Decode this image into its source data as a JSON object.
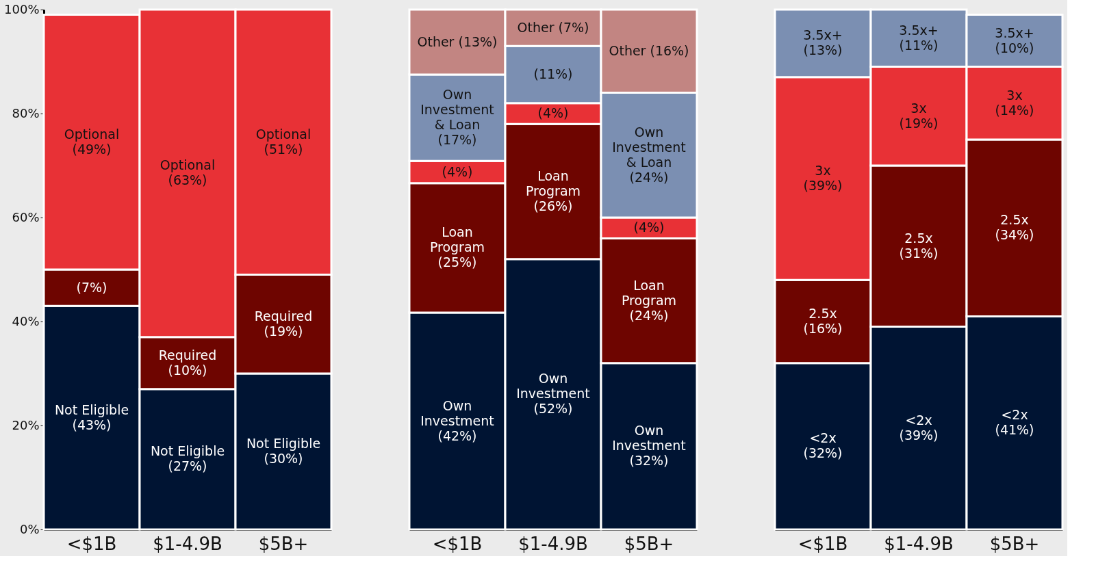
{
  "chart_data": [
    {
      "type": "bar",
      "stacked": true,
      "categories": [
        "<$1B",
        "$1-4.9B",
        "$5B+"
      ],
      "ylim": [
        0,
        100
      ],
      "yticks": [
        {
          "value": 0,
          "label": "0%"
        },
        {
          "value": 20,
          "label": "20%"
        },
        {
          "value": 40,
          "label": "40%"
        },
        {
          "value": 60,
          "label": "60%"
        },
        {
          "value": 80,
          "label": "80%"
        },
        {
          "value": 100,
          "label": "100%"
        }
      ],
      "series": [
        {
          "color": "#001433",
          "values": [
            43,
            27,
            30
          ],
          "value_labels": [
            "Not Eligible\n(43%)",
            "Not Eligible\n(27%)",
            "Not Eligible\n(30%)"
          ]
        },
        {
          "color": "#6e0500",
          "values": [
            7,
            10,
            19
          ],
          "value_labels": [
            "(7%)",
            "Required\n(10%)",
            "Required\n(19%)"
          ]
        },
        {
          "color": "#e83136",
          "values": [
            49,
            63,
            51
          ],
          "value_labels": [
            "Optional\n(49%)",
            "Optional\n(63%)",
            "Optional\n(51%)"
          ]
        }
      ]
    },
    {
      "type": "bar",
      "stacked": true,
      "categories": [
        "<$1B",
        "$1-4.9B",
        "$5B+"
      ],
      "ylim": [
        0,
        100
      ],
      "tick_labels": "x",
      "series": [
        {
          "color": "#001433",
          "values": [
            41.7,
            52,
            32
          ],
          "value_labels": [
            "Own\nInvestment\n(42%)",
            "Own\nInvestment\n(52%)",
            "Own\nInvestment\n(32%)"
          ]
        },
        {
          "color": "#6e0500",
          "values": [
            24.9,
            26,
            24
          ],
          "value_labels": [
            "Loan\nProgram\n(25%)",
            "Loan\nProgram\n(26%)",
            "Loan\nProgram\n(24%)"
          ]
        },
        {
          "color": "#e83136",
          "values": [
            4.3,
            4,
            4
          ],
          "value_labels": [
            "(4%)",
            "(4%)",
            "(4%)"
          ]
        },
        {
          "color": "#7b8fb2",
          "values": [
            16.6,
            11,
            24
          ],
          "value_labels": [
            "Own\nInvestment\n& Loan\n(17%)",
            "(11%)",
            "Own\nInvestment\n& Loan\n(24%)"
          ]
        },
        {
          "color": "#c28582",
          "values": [
            12.5,
            7,
            16
          ],
          "value_labels": [
            "Other (13%)",
            "Other (7%)",
            "Other (16%)"
          ]
        }
      ]
    },
    {
      "type": "bar",
      "stacked": true,
      "categories": [
        "<$1B",
        "$1-4.9B",
        "$5B+"
      ],
      "ylim": [
        0,
        100
      ],
      "tick_labels": "x",
      "series": [
        {
          "color": "#001433",
          "values": [
            32,
            39,
            41
          ],
          "value_labels": [
            "<2x\n(32%)",
            "<2x\n(39%)",
            "<2x\n(41%)"
          ]
        },
        {
          "color": "#6e0500",
          "values": [
            16,
            31,
            34
          ],
          "value_labels": [
            "2.5x\n(16%)",
            "2.5x\n(31%)",
            "2.5x\n(34%)"
          ]
        },
        {
          "color": "#e83136",
          "values": [
            39,
            19,
            14
          ],
          "value_labels": [
            "3x\n(39%)",
            "3x\n(19%)",
            "3x\n(14%)"
          ]
        },
        {
          "color": "#7b8fb2",
          "values": [
            13,
            11,
            10
          ],
          "value_labels": [
            "3.5x+\n(13%)",
            "3.5x+\n(11%)",
            "3.5x+\n(10%)"
          ]
        }
      ]
    }
  ]
}
